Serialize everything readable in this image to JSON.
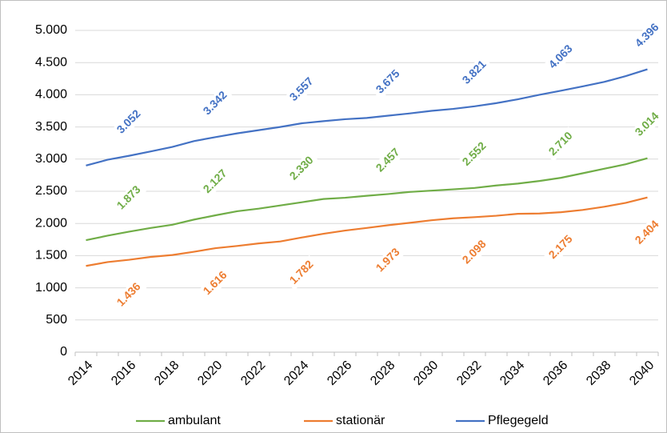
{
  "chart_data": {
    "type": "line",
    "categories": [
      "2014",
      null,
      "2016",
      null,
      "2018",
      null,
      "2020",
      null,
      "2022",
      null,
      "2024",
      null,
      "2026",
      null,
      "2028",
      null,
      "2030",
      null,
      "2032",
      null,
      "2034",
      null,
      "2036",
      null,
      "2038",
      null,
      "2040"
    ],
    "series": [
      {
        "name": "ambulant",
        "color": "#70ad47",
        "values": [
          1740,
          1810,
          1873,
          1930,
          1980,
          2060,
          2127,
          2190,
          2230,
          2280,
          2330,
          2380,
          2400,
          2430,
          2457,
          2490,
          2510,
          2530,
          2552,
          2590,
          2620,
          2660,
          2710,
          2780,
          2850,
          2920,
          3014
        ],
        "value_labels": [
          null,
          null,
          "1.873",
          null,
          null,
          null,
          "2.127",
          null,
          null,
          null,
          "2.330",
          null,
          null,
          null,
          "2.457",
          null,
          null,
          null,
          "2.552",
          null,
          null,
          null,
          "2.710",
          null,
          null,
          null,
          "3.014"
        ]
      },
      {
        "name": "stationär",
        "color": "#ed7d31",
        "values": [
          1340,
          1400,
          1436,
          1480,
          1510,
          1560,
          1616,
          1650,
          1690,
          1720,
          1782,
          1840,
          1890,
          1930,
          1973,
          2010,
          2050,
          2080,
          2098,
          2120,
          2150,
          2155,
          2175,
          2210,
          2260,
          2320,
          2404
        ],
        "value_labels": [
          null,
          null,
          "1.436",
          null,
          null,
          null,
          "1.616",
          null,
          null,
          null,
          "1.782",
          null,
          null,
          null,
          "1.973",
          null,
          null,
          null,
          "2.098",
          null,
          null,
          null,
          "2.175",
          null,
          null,
          null,
          "2.404"
        ]
      },
      {
        "name": "Pflegegeld",
        "color": "#4472c4",
        "values": [
          2900,
          2990,
          3052,
          3120,
          3190,
          3280,
          3342,
          3400,
          3450,
          3500,
          3557,
          3590,
          3620,
          3640,
          3675,
          3710,
          3750,
          3780,
          3821,
          3870,
          3930,
          4000,
          4063,
          4130,
          4200,
          4290,
          4396
        ],
        "value_labels": [
          null,
          null,
          "3.052",
          null,
          null,
          null,
          "3.342",
          null,
          null,
          null,
          "3.557",
          null,
          null,
          null,
          "3.675",
          null,
          null,
          null,
          "3.821",
          null,
          null,
          null,
          "4.063",
          null,
          null,
          null,
          "4.396"
        ]
      }
    ],
    "ylim": [
      0,
      5000
    ],
    "yticks": [
      {
        "value": 0,
        "label": "0"
      },
      {
        "value": 500,
        "label": "500"
      },
      {
        "value": 1000,
        "label": "1.000"
      },
      {
        "value": 1500,
        "label": "1.500"
      },
      {
        "value": 2000,
        "label": "2.000"
      },
      {
        "value": 2500,
        "label": "2.500"
      },
      {
        "value": 3000,
        "label": "3.000"
      },
      {
        "value": 3500,
        "label": "3.500"
      },
      {
        "value": 4000,
        "label": "4.000"
      },
      {
        "value": 4500,
        "label": "4.500"
      },
      {
        "value": 5000,
        "label": "5.000"
      }
    ],
    "grid": true,
    "legend": "bottom"
  }
}
